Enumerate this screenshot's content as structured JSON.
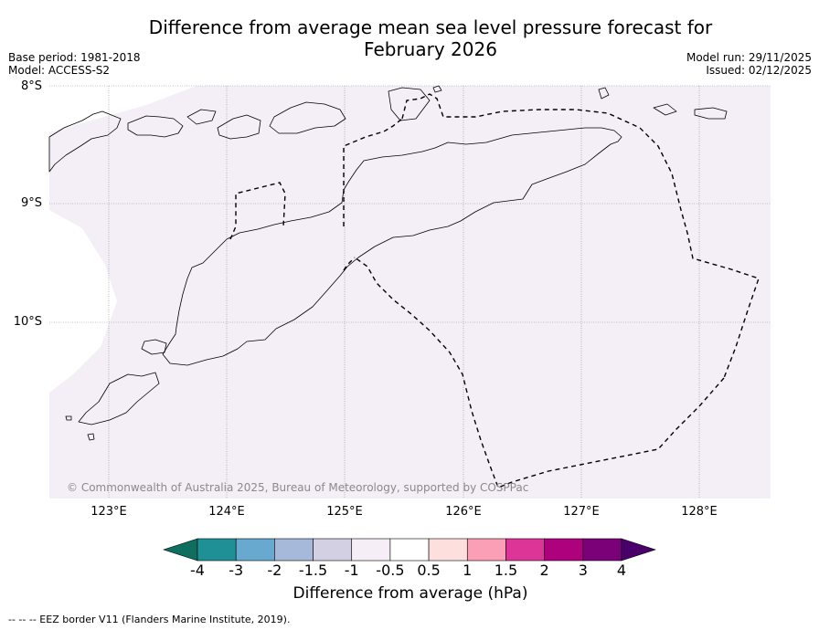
{
  "title_line1": "Difference from average mean sea level pressure forecast for",
  "title_line2": "February 2026",
  "meta_left": {
    "base_period": "Base period: 1981-2018",
    "model": "Model: ACCESS-S2"
  },
  "meta_right": {
    "model_run": "Model run: 29/11/2025",
    "issued": "Issued: 02/12/2025"
  },
  "lat_ticks": [
    "8°S",
    "9°S",
    "10°S"
  ],
  "lon_ticks": [
    "123°E",
    "124°E",
    "125°E",
    "126°E",
    "127°E",
    "128°E"
  ],
  "copyright": "© Commonwealth of Australia 2025, Bureau of Meteorology, supported by COSPPac",
  "colorbar": {
    "title": "Difference from average (hPa)",
    "labels": [
      "-4",
      "-3",
      "-2",
      "-1.5",
      "-1",
      "-0.5",
      "0.5",
      "1",
      "1.5",
      "2",
      "3",
      "4"
    ],
    "colors": [
      "#0e6f5f",
      "#1f9196",
      "#67a9cf",
      "#a6b9da",
      "#d4d0e4",
      "#f5eef6",
      "#ffffff",
      "#fde0dd",
      "#fa9fb5",
      "#dd3497",
      "#ae017e",
      "#7a0177",
      "#49006a"
    ]
  },
  "footnote": "--  --  -- EEZ border V11 (Flanders Marine Institute, 2019).",
  "colors": {
    "map_fill": "#f4eef6",
    "coast": "#000000",
    "grid": "#8c8c8c"
  }
}
